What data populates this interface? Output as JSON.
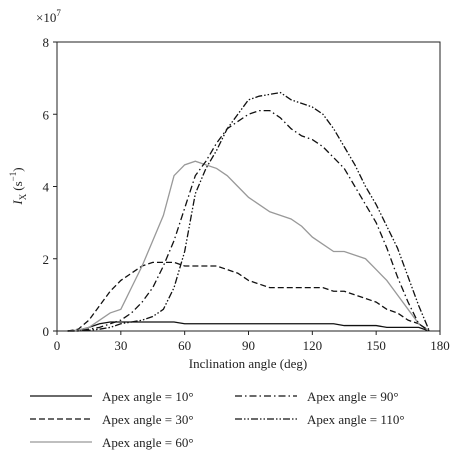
{
  "chart_data": {
    "type": "line",
    "y_multiplier": {
      "base": "×10",
      "exponent": "7"
    },
    "ylabel": {
      "symbol": "I",
      "subscript": "X",
      "unit_open": "(s",
      "unit_exponent": "−1",
      "unit_close": ")"
    },
    "xlabel": "Inclination angle (deg)",
    "xlim": [
      0,
      180
    ],
    "xticks": [
      0,
      30,
      60,
      90,
      120,
      150,
      180
    ],
    "ylim": [
      0,
      8
    ],
    "yticks": [
      0,
      2,
      4,
      6,
      8
    ],
    "x": [
      5,
      10,
      15,
      20,
      25,
      30,
      35,
      40,
      45,
      50,
      55,
      60,
      65,
      70,
      75,
      80,
      85,
      90,
      95,
      100,
      105,
      110,
      115,
      120,
      125,
      130,
      135,
      140,
      145,
      150,
      155,
      160,
      165,
      170,
      175
    ],
    "series": [
      {
        "name": "Apex angle = 10°",
        "color": "#111111",
        "linestyle": "solid",
        "values": [
          0,
          0.02,
          0.1,
          0.2,
          0.25,
          0.25,
          0.25,
          0.25,
          0.25,
          0.25,
          0.25,
          0.2,
          0.2,
          0.2,
          0.2,
          0.2,
          0.2,
          0.2,
          0.2,
          0.2,
          0.2,
          0.2,
          0.2,
          0.2,
          0.2,
          0.2,
          0.15,
          0.15,
          0.15,
          0.15,
          0.1,
          0.1,
          0.1,
          0.1,
          0
        ]
      },
      {
        "name": "Apex angle = 30°",
        "color": "#111111",
        "linestyle": "dashed",
        "values": [
          0,
          0.05,
          0.3,
          0.7,
          1.1,
          1.4,
          1.6,
          1.8,
          1.9,
          1.9,
          1.9,
          1.8,
          1.8,
          1.8,
          1.8,
          1.7,
          1.6,
          1.4,
          1.3,
          1.2,
          1.2,
          1.2,
          1.2,
          1.2,
          1.2,
          1.1,
          1.1,
          1.0,
          0.9,
          0.8,
          0.6,
          0.5,
          0.3,
          0.2,
          0
        ]
      },
      {
        "name": "Apex angle = 60°",
        "color": "#999999",
        "linestyle": "solid",
        "values": [
          0,
          0.02,
          0.1,
          0.3,
          0.5,
          0.6,
          1.2,
          1.8,
          2.5,
          3.2,
          4.3,
          4.6,
          4.7,
          4.6,
          4.5,
          4.3,
          4.0,
          3.7,
          3.5,
          3.3,
          3.2,
          3.1,
          2.9,
          2.6,
          2.4,
          2.2,
          2.2,
          2.1,
          2.0,
          1.7,
          1.4,
          1.0,
          0.6,
          0.2,
          0
        ]
      },
      {
        "name": "Apex angle = 90°",
        "color": "#111111",
        "linestyle": "dashdot",
        "values": [
          0,
          0,
          0.05,
          0.1,
          0.2,
          0.3,
          0.5,
          0.8,
          1.2,
          1.8,
          2.5,
          3.4,
          4.3,
          4.7,
          5.2,
          5.6,
          5.8,
          6.0,
          6.1,
          6.1,
          5.9,
          5.6,
          5.4,
          5.3,
          5.1,
          4.8,
          4.5,
          4.0,
          3.5,
          3.0,
          2.3,
          1.5,
          0.8,
          0.2,
          0
        ]
      },
      {
        "name": "Apex angle = 110°",
        "color": "#111111",
        "linestyle": "dashdotdot",
        "values": [
          0,
          0,
          0.02,
          0.05,
          0.1,
          0.2,
          0.25,
          0.3,
          0.4,
          0.6,
          1.2,
          2.2,
          3.8,
          4.5,
          5.0,
          5.6,
          6.0,
          6.4,
          6.5,
          6.55,
          6.6,
          6.4,
          6.3,
          6.2,
          6.0,
          5.6,
          5.1,
          4.6,
          4.0,
          3.5,
          2.9,
          2.3,
          1.5,
          0.7,
          0
        ]
      }
    ]
  }
}
